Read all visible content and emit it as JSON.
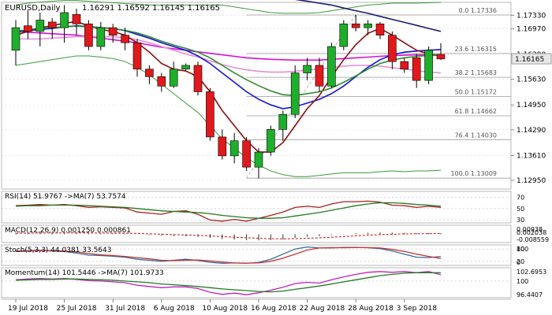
{
  "colors": {
    "bull": "#1fae2b",
    "bear": "#e0191c",
    "wick": "#000000",
    "ma_magenta": "#d410d4",
    "ma_pink": "#e58fd8",
    "ma_blue": "#1414d8",
    "ma_darkred": "#8b0f0f",
    "ma_green": "#2e8b2e",
    "bollinger": "#3c9a3c",
    "navy": "#1a1a6e",
    "fib": "#9a9a9a",
    "grid": "#d8d8d8",
    "price_tag_bg": "#e8e8e8",
    "rsi_red": "#a52020",
    "rsi_green": "#207a20",
    "macd_red": "#d01010",
    "macd_bar": "#555555",
    "stoch_main": "#2f6f9f",
    "stoch_signal": "#cc3333",
    "mom_main": "#c020c0",
    "mom_signal": "#207a20"
  },
  "chart_data": {
    "type": "candlestick",
    "symbol": "EURUSD",
    "timeframe": "Daily",
    "header": {
      "symbol_tf": "EURUSD,Daily",
      "ohlc": "1.16291 1.16592 1.16145 1.16165"
    },
    "last_price": "1.16165",
    "price_ticks": [
      "1.17330",
      "1.16970",
      "1.16290",
      "1.15630",
      "1.14950",
      "1.14290",
      "1.13610",
      "1.12950"
    ],
    "price_range": [
      1.1272,
      1.1765
    ],
    "x_labels": [
      "19 Jul 2018",
      "25 Jul 2018",
      "31 Jul 2018",
      "6 Aug 2018",
      "10 Aug 2018",
      "16 Aug 2018",
      "22 Aug 2018",
      "28 Aug 2018",
      "3 Sep 2018"
    ],
    "x_label_index": [
      0,
      4,
      8,
      12,
      16,
      20,
      24,
      28,
      32
    ],
    "candles": [
      {
        "o": 1.164,
        "h": 1.172,
        "l": 1.16,
        "c": 1.17
      },
      {
        "o": 1.1705,
        "h": 1.1745,
        "l": 1.167,
        "c": 1.169
      },
      {
        "o": 1.169,
        "h": 1.174,
        "l": 1.165,
        "c": 1.172
      },
      {
        "o": 1.1715,
        "h": 1.1725,
        "l": 1.167,
        "c": 1.17
      },
      {
        "o": 1.17,
        "h": 1.176,
        "l": 1.166,
        "c": 1.174
      },
      {
        "o": 1.1735,
        "h": 1.175,
        "l": 1.168,
        "c": 1.171
      },
      {
        "o": 1.171,
        "h": 1.172,
        "l": 1.164,
        "c": 1.165
      },
      {
        "o": 1.165,
        "h": 1.1715,
        "l": 1.164,
        "c": 1.17
      },
      {
        "o": 1.17,
        "h": 1.171,
        "l": 1.166,
        "c": 1.168
      },
      {
        "o": 1.168,
        "h": 1.17,
        "l": 1.164,
        "c": 1.166
      },
      {
        "o": 1.166,
        "h": 1.167,
        "l": 1.157,
        "c": 1.159
      },
      {
        "o": 1.159,
        "h": 1.16,
        "l": 1.155,
        "c": 1.157
      },
      {
        "o": 1.157,
        "h": 1.158,
        "l": 1.153,
        "c": 1.1545
      },
      {
        "o": 1.1545,
        "h": 1.161,
        "l": 1.154,
        "c": 1.159
      },
      {
        "o": 1.159,
        "h": 1.1605,
        "l": 1.1585,
        "c": 1.16
      },
      {
        "o": 1.16,
        "h": 1.161,
        "l": 1.152,
        "c": 1.153
      },
      {
        "o": 1.153,
        "h": 1.154,
        "l": 1.14,
        "c": 1.141
      },
      {
        "o": 1.141,
        "h": 1.143,
        "l": 1.135,
        "c": 1.136
      },
      {
        "o": 1.136,
        "h": 1.142,
        "l": 1.134,
        "c": 1.14
      },
      {
        "o": 1.14,
        "h": 1.141,
        "l": 1.132,
        "c": 1.133
      },
      {
        "o": 1.133,
        "h": 1.138,
        "l": 1.13,
        "c": 1.137
      },
      {
        "o": 1.137,
        "h": 1.144,
        "l": 1.136,
        "c": 1.143
      },
      {
        "o": 1.143,
        "h": 1.148,
        "l": 1.14,
        "c": 1.147
      },
      {
        "o": 1.147,
        "h": 1.16,
        "l": 1.146,
        "c": 1.158
      },
      {
        "o": 1.158,
        "h": 1.162,
        "l": 1.156,
        "c": 1.16
      },
      {
        "o": 1.16,
        "h": 1.162,
        "l": 1.153,
        "c": 1.1545
      },
      {
        "o": 1.1545,
        "h": 1.166,
        "l": 1.154,
        "c": 1.165
      },
      {
        "o": 1.165,
        "h": 1.172,
        "l": 1.164,
        "c": 1.171
      },
      {
        "o": 1.171,
        "h": 1.1734,
        "l": 1.169,
        "c": 1.17
      },
      {
        "o": 1.17,
        "h": 1.172,
        "l": 1.168,
        "c": 1.171
      },
      {
        "o": 1.171,
        "h": 1.1715,
        "l": 1.167,
        "c": 1.168
      },
      {
        "o": 1.168,
        "h": 1.169,
        "l": 1.159,
        "c": 1.161
      },
      {
        "o": 1.161,
        "h": 1.162,
        "l": 1.158,
        "c": 1.159
      },
      {
        "o": 1.162,
        "h": 1.163,
        "l": 1.154,
        "c": 1.156
      },
      {
        "o": 1.156,
        "h": 1.165,
        "l": 1.155,
        "c": 1.164
      },
      {
        "o": 1.1629,
        "h": 1.1659,
        "l": 1.1614,
        "c": 1.1617
      }
    ],
    "moving_averages": [
      {
        "color_key": "ma_magenta",
        "values": [
          1.169,
          1.1688,
          1.1686,
          1.1684,
          1.1682,
          1.168,
          1.1676,
          1.1672,
          1.1668,
          1.1664,
          1.166,
          1.1654,
          1.1648,
          1.1644,
          1.164,
          1.1636,
          1.1632,
          1.1628,
          1.1624,
          1.162,
          1.1618,
          1.1616,
          1.1615,
          1.1614,
          1.1614,
          1.1614,
          1.1616,
          1.1618,
          1.162,
          1.1622,
          1.1624,
          1.1626,
          1.1627,
          1.1628,
          1.1628,
          1.1628
        ]
      },
      {
        "color_key": "ma_pink",
        "values": [
          1.167,
          1.167,
          1.167,
          1.1672,
          1.1674,
          1.1676,
          1.1676,
          1.1676,
          1.1676,
          1.1674,
          1.1668,
          1.166,
          1.165,
          1.164,
          1.163,
          1.1622,
          1.1612,
          1.1602,
          1.1594,
          1.1588,
          1.1584,
          1.1582,
          1.1582,
          1.1584,
          1.1588,
          1.159,
          1.1594,
          1.1598,
          1.16,
          1.16,
          1.1598,
          1.1594,
          1.159,
          1.1586,
          1.1582,
          1.158
        ]
      },
      {
        "color_key": "ma_blue",
        "values": [
          1.169,
          1.1692,
          1.1695,
          1.1698,
          1.1702,
          1.1705,
          1.1703,
          1.17,
          1.1698,
          1.1692,
          1.1682,
          1.1672,
          1.166,
          1.165,
          1.164,
          1.1625,
          1.1605,
          1.158,
          1.1555,
          1.153,
          1.151,
          1.1495,
          1.1485,
          1.149,
          1.15,
          1.151,
          1.1525,
          1.1545,
          1.157,
          1.1595,
          1.1615,
          1.1628,
          1.1635,
          1.1638,
          1.164,
          1.1642
        ]
      },
      {
        "color_key": "ma_darkred",
        "values": [
          1.168,
          1.169,
          1.17,
          1.1705,
          1.1712,
          1.1716,
          1.1705,
          1.1695,
          1.169,
          1.168,
          1.166,
          1.1635,
          1.1605,
          1.159,
          1.1585,
          1.157,
          1.153,
          1.148,
          1.144,
          1.14,
          1.137,
          1.137,
          1.1395,
          1.144,
          1.1485,
          1.152,
          1.157,
          1.1615,
          1.1655,
          1.1685,
          1.1698,
          1.168,
          1.166,
          1.164,
          1.163,
          1.1625
        ]
      },
      {
        "color_key": "ma_green",
        "values": [
          1.169,
          1.1695,
          1.1698,
          1.17,
          1.1702,
          1.1704,
          1.1702,
          1.17,
          1.1697,
          1.1693,
          1.1686,
          1.1676,
          1.1664,
          1.1654,
          1.1645,
          1.1635,
          1.162,
          1.16,
          1.158,
          1.1562,
          1.1546,
          1.1532,
          1.1522,
          1.152,
          1.1525,
          1.153,
          1.154,
          1.1555,
          1.1572,
          1.159,
          1.1605,
          1.1614,
          1.162,
          1.1624,
          1.1626,
          1.1627
        ]
      },
      {
        "color_key": "bollinger",
        "values": [
          1.16,
          1.1605,
          1.161,
          1.1615,
          1.162,
          1.1625,
          1.1625,
          1.1622,
          1.1618,
          1.161,
          1.1595,
          1.1575,
          1.155,
          1.1525,
          1.15,
          1.1475,
          1.144,
          1.1405,
          1.138,
          1.1355,
          1.1335,
          1.132,
          1.131,
          1.1305,
          1.1305,
          1.1308,
          1.1312,
          1.1315,
          1.1315,
          1.1315,
          1.1318,
          1.132,
          1.1318,
          1.132,
          1.132,
          1.1322
        ]
      },
      {
        "color_key": "bollinger",
        "values": [
          1.176,
          1.1765,
          1.1768,
          1.177,
          1.1772,
          1.1772,
          1.177,
          1.1768,
          1.1766,
          1.1764,
          1.1762,
          1.176,
          1.176,
          1.176,
          1.176,
          1.176,
          1.176,
          1.176,
          1.1755,
          1.175,
          1.1745,
          1.174,
          1.1738,
          1.1738,
          1.1738,
          1.174,
          1.1745,
          1.175,
          1.1755,
          1.176,
          1.1762,
          1.1765,
          1.1765,
          1.1765,
          1.1766,
          1.1767
        ]
      },
      {
        "color_key": "navy",
        "values": [
          null,
          null,
          null,
          null,
          null,
          null,
          null,
          null,
          null,
          null,
          null,
          null,
          null,
          null,
          null,
          null,
          null,
          null,
          null,
          null,
          null,
          null,
          null,
          1.1775,
          1.177,
          1.1765,
          1.176,
          1.1752,
          1.1745,
          1.1738,
          1.173,
          1.1722,
          1.1714,
          1.1706,
          1.1698,
          1.169
        ]
      }
    ],
    "fibonacci": [
      {
        "label": "0.0 1.17336",
        "value": 1.17336
      },
      {
        "label": "23.6 1.16315",
        "value": 1.16315
      },
      {
        "label": "38.2 1.15683",
        "value": 1.15683
      },
      {
        "label": "50.0 1.15172",
        "value": 1.15172
      },
      {
        "label": "61.8 1.14662",
        "value": 1.14662
      },
      {
        "label": "76.4 1.14030",
        "value": 1.1403
      },
      {
        "label": "100.0 1.13009",
        "value": 1.13009
      }
    ],
    "panels": [
      {
        "name": "RSI",
        "header": "RSI(14) 51.9767  ->MA(7) 53.7574",
        "ticks": [
          "70",
          "50",
          "30"
        ],
        "range": [
          25,
          80
        ],
        "levels": [
          70,
          50,
          30
        ],
        "series": [
          {
            "color_key": "rsi_red",
            "values": [
              55,
              56,
              57,
              56,
              57,
              55,
              52,
              53,
              52,
              51,
              44,
              42,
              40,
              45,
              46,
              40,
              30,
              28,
              31,
              28,
              33,
              38,
              44,
              52,
              54,
              52,
              58,
              62,
              62,
              63,
              61,
              56,
              55,
              52,
              54,
              52
            ]
          },
          {
            "color_key": "rsi_green",
            "values": [
              54,
              55,
              55,
              56,
              56,
              56,
              55,
              54,
              53,
              52,
              50,
              48,
              46,
              45,
              44,
              43,
              41,
              38,
              36,
              34,
              33,
              33,
              34,
              37,
              40,
              43,
              47,
              51,
              55,
              58,
              60,
              60,
              59,
              57,
              56,
              54
            ]
          }
        ]
      },
      {
        "name": "MACD",
        "header": "MACD(12,26,9) 0.001250 0.000861",
        "ticks": [
          "0.00938",
          "0.002038",
          "-0.008559"
        ],
        "range": [
          -0.009,
          0.0098
        ],
        "hist": [
          0.001,
          0.0012,
          0.0014,
          0.0015,
          0.0016,
          0.0015,
          0.0012,
          0.0011,
          0.0009,
          0.0006,
          0.0,
          -0.0008,
          -0.0016,
          -0.002,
          -0.0022,
          -0.0028,
          -0.004,
          -0.0052,
          -0.0058,
          -0.0064,
          -0.0066,
          -0.0064,
          -0.0056,
          -0.004,
          -0.0028,
          -0.002,
          -0.0008,
          0.0004,
          0.0012,
          0.0018,
          0.002,
          0.0018,
          0.0016,
          0.0012,
          0.0012,
          0.0012
        ],
        "signal": [
          0.0012,
          0.0012,
          0.0013,
          0.0013,
          0.0014,
          0.0014,
          0.0014,
          0.0013,
          0.0012,
          0.0011,
          0.0009,
          0.0005,
          0.0001,
          -0.0004,
          -0.0008,
          -0.0012,
          -0.0018,
          -0.0025,
          -0.0032,
          -0.0038,
          -0.0044,
          -0.0048,
          -0.005,
          -0.0048,
          -0.0044,
          -0.0039,
          -0.0032,
          -0.0025,
          -0.0017,
          -0.001,
          -0.0004,
          0.0,
          0.0004,
          0.0006,
          0.0008,
          0.0009
        ]
      },
      {
        "name": "Stoch",
        "header": "Stoch(5,3,3) 44.0381 33.5643",
        "ticks": [
          "100",
          "80",
          "20",
          "0"
        ],
        "range": [
          0,
          100
        ],
        "levels": [
          80,
          20
        ],
        "series": [
          {
            "color_key": "stoch_main",
            "values": [
              70,
              72,
              74,
              70,
              68,
              60,
              50,
              48,
              45,
              40,
              30,
              25,
              20,
              25,
              30,
              24,
              15,
              10,
              12,
              10,
              15,
              30,
              55,
              80,
              90,
              85,
              85,
              88,
              88,
              86,
              82,
              70,
              55,
              40,
              38,
              44
            ]
          },
          {
            "color_key": "stoch_signal",
            "values": [
              68,
              70,
              72,
              72,
              70,
              66,
              58,
              52,
              48,
              44,
              38,
              32,
              25,
              23,
              25,
              26,
              22,
              16,
              12,
              11,
              12,
              20,
              35,
              55,
              75,
              85,
              87,
              86,
              87,
              87,
              85,
              78,
              68,
              55,
              44,
              34
            ]
          }
        ]
      },
      {
        "name": "Momentum",
        "header": "Momentum(14) 101.5446  ->MA(7) 101.9733",
        "ticks": [
          "102.6953",
          "100",
          "96.4407"
        ],
        "range": [
          96.0,
          103.2
        ],
        "levels": [
          100
        ],
        "series": [
          {
            "color_key": "mom_main",
            "values": [
              100.3,
              100.5,
              100.6,
              100.5,
              100.6,
              100.4,
              100.1,
              100.0,
              99.8,
              99.6,
              99.0,
              98.7,
              98.4,
              98.6,
              98.6,
              98.2,
              97.3,
              96.8,
              97.1,
              96.7,
              97.2,
              97.8,
              98.5,
              99.4,
              99.7,
              99.5,
              100.3,
              101.0,
              101.6,
              102.1,
              102.3,
              102.1,
              102.3,
              102.0,
              102.3,
              101.5
            ]
          },
          {
            "color_key": "mom_signal",
            "values": [
              100.2,
              100.3,
              100.4,
              100.4,
              100.5,
              100.5,
              100.4,
              100.3,
              100.2,
              100.0,
              99.8,
              99.6,
              99.3,
              99.1,
              98.9,
              98.7,
              98.4,
              98.1,
              97.9,
              97.7,
              97.5,
              97.4,
              97.6,
              98.0,
              98.4,
              98.8,
              99.3,
              99.8,
              100.3,
              100.8,
              101.3,
              101.6,
              101.9,
              102.0,
              102.0,
              102.0
            ]
          }
        ]
      }
    ]
  }
}
